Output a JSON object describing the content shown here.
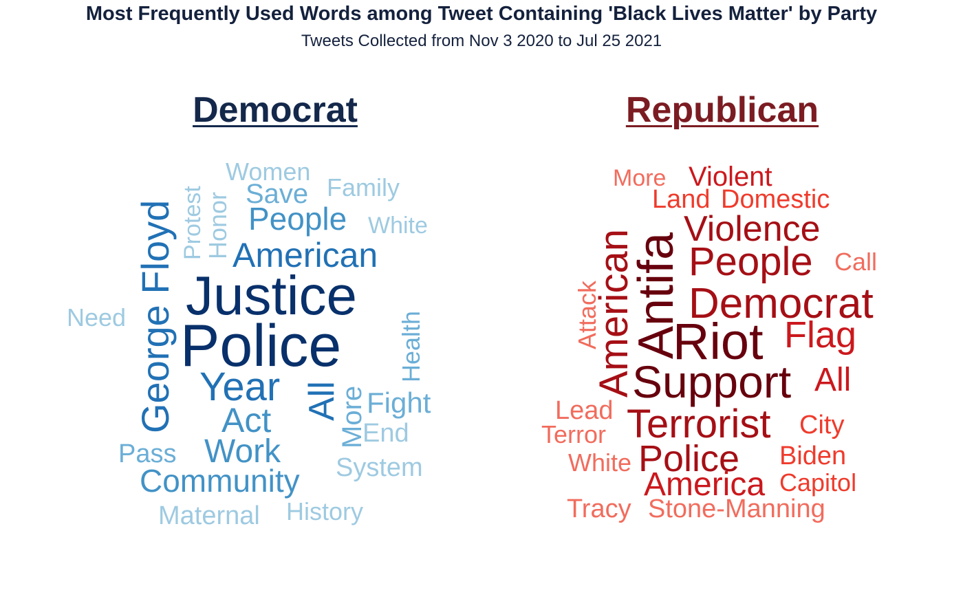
{
  "title": "Most Frequently Used Words among Tweet Containing 'Black Lives Matter' by Party",
  "subtitle": "Tweets Collected from Nov 3 2020 to Jul 25 2021",
  "chart_data": [
    {
      "type": "wordcloud",
      "panel": "Democrat",
      "title": "Democrat",
      "palette": [
        "#08306b",
        "#2171b5",
        "#4292c6",
        "#6baed6",
        "#9ecae1"
      ],
      "words": [
        {
          "text": "Police",
          "rank": 1,
          "rotate": 0
        },
        {
          "text": "Justice",
          "rank": 1,
          "rotate": 0
        },
        {
          "text": "George Floyd",
          "rank": 2,
          "rotate": -90
        },
        {
          "text": "American",
          "rank": 2,
          "rotate": 0
        },
        {
          "text": "Year",
          "rank": 2,
          "rotate": 0
        },
        {
          "text": "All",
          "rank": 2,
          "rotate": -90
        },
        {
          "text": "Act",
          "rank": 3,
          "rotate": 0
        },
        {
          "text": "Work",
          "rank": 3,
          "rotate": 0
        },
        {
          "text": "Community",
          "rank": 3,
          "rotate": 0
        },
        {
          "text": "People",
          "rank": 3,
          "rotate": 0
        },
        {
          "text": "Fight",
          "rank": 4,
          "rotate": 0
        },
        {
          "text": "Save",
          "rank": 4,
          "rotate": 0
        },
        {
          "text": "Health",
          "rank": 4,
          "rotate": -90
        },
        {
          "text": "More",
          "rank": 4,
          "rotate": -90
        },
        {
          "text": "Pass",
          "rank": 4,
          "rotate": 0
        },
        {
          "text": "System",
          "rank": 5,
          "rotate": 0
        },
        {
          "text": "Maternal",
          "rank": 5,
          "rotate": 0
        },
        {
          "text": "History",
          "rank": 5,
          "rotate": 0
        },
        {
          "text": "End",
          "rank": 5,
          "rotate": 0
        },
        {
          "text": "Honor",
          "rank": 5,
          "rotate": -90
        },
        {
          "text": "Protest",
          "rank": 5,
          "rotate": -90
        },
        {
          "text": "Women",
          "rank": 5,
          "rotate": 0
        },
        {
          "text": "Family",
          "rank": 5,
          "rotate": 0
        },
        {
          "text": "White",
          "rank": 5,
          "rotate": 0
        },
        {
          "text": "Need",
          "rank": 5,
          "rotate": 0
        }
      ]
    },
    {
      "type": "wordcloud",
      "panel": "Republican",
      "title": "Republican",
      "palette": [
        "#67000d",
        "#a50f15",
        "#cb181d",
        "#ef3b2c",
        "#f16c5d"
      ],
      "words": [
        {
          "text": "Riot",
          "rank": 1,
          "rotate": 0
        },
        {
          "text": "Support",
          "rank": 1,
          "rotate": 0
        },
        {
          "text": "Antifa",
          "rank": 1,
          "rotate": -90
        },
        {
          "text": "Democrat",
          "rank": 2,
          "rotate": 0
        },
        {
          "text": "People",
          "rank": 2,
          "rotate": 0
        },
        {
          "text": "American",
          "rank": 2,
          "rotate": -90
        },
        {
          "text": "Violence",
          "rank": 2,
          "rotate": 0
        },
        {
          "text": "Terrorist",
          "rank": 2,
          "rotate": 0
        },
        {
          "text": "Police",
          "rank": 2,
          "rotate": 0
        },
        {
          "text": "Flag",
          "rank": 3,
          "rotate": 0
        },
        {
          "text": "All",
          "rank": 3,
          "rotate": 0
        },
        {
          "text": "America",
          "rank": 3,
          "rotate": 0
        },
        {
          "text": "Violent",
          "rank": 3,
          "rotate": 0
        },
        {
          "text": "Domestic",
          "rank": 4,
          "rotate": 0
        },
        {
          "text": "Land",
          "rank": 4,
          "rotate": 0
        },
        {
          "text": "City",
          "rank": 4,
          "rotate": 0
        },
        {
          "text": "Biden",
          "rank": 4,
          "rotate": 0
        },
        {
          "text": "Capitol",
          "rank": 4,
          "rotate": 0
        },
        {
          "text": "Stone-Manning",
          "rank": 5,
          "rotate": 0
        },
        {
          "text": "Tracy",
          "rank": 5,
          "rotate": 0
        },
        {
          "text": "White",
          "rank": 5,
          "rotate": 0
        },
        {
          "text": "Terror",
          "rank": 5,
          "rotate": 0
        },
        {
          "text": "Lead",
          "rank": 5,
          "rotate": 0
        },
        {
          "text": "Attack",
          "rank": 5,
          "rotate": -90
        },
        {
          "text": "Call",
          "rank": 5,
          "rotate": 0
        },
        {
          "text": "More",
          "rank": 5,
          "rotate": 0
        }
      ]
    }
  ]
}
